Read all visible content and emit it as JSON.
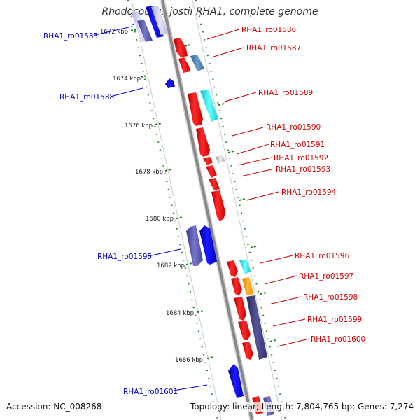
{
  "title": "Rhodococcus jostii RHA1, complete genome",
  "accession": "Accession: NC_008268",
  "topology": "Topology: linear; Length: 7,804,765 bp; Genes: 7,274",
  "ruler_labels": [
    "1672 kbp",
    "1674 kbp",
    "1676 kbp",
    "1678 kbp",
    "1680 kbp",
    "1682 kbp",
    "1684 kbp",
    "1686 kbp"
  ],
  "genes_left": [
    "RHA1_ro01585",
    "RHA1_ro01588",
    "RHA1_ro01595",
    "RHA1_ro01601"
  ],
  "genes_right": [
    "RHA1_ro01586",
    "RHA1_ro01587",
    "RHA1_ro01589",
    "RHA1_ro01590",
    "RHA1_ro01591",
    "RHA1_ro01592",
    "RHA1_ro01593",
    "RHA1_ro01594",
    "RHA1_ro01596",
    "RHA1_ro01597",
    "RHA1_ro01598",
    "RHA1_ro01599",
    "RHA1_ro01600"
  ],
  "colors": {
    "left_label": "#0000cc",
    "right_label": "#cc0000",
    "ruler_tick": "#1a7a1a",
    "backbone": "#888888",
    "red_feature": "#ee1111",
    "blue_feature": "#0000ee",
    "steel_feature": "#4a7aaa",
    "cyan_feature": "#22dddd",
    "purple_feature": "#5555aa",
    "orange_feature": "#ff9900",
    "grey_feature": "#bbbbbb"
  }
}
